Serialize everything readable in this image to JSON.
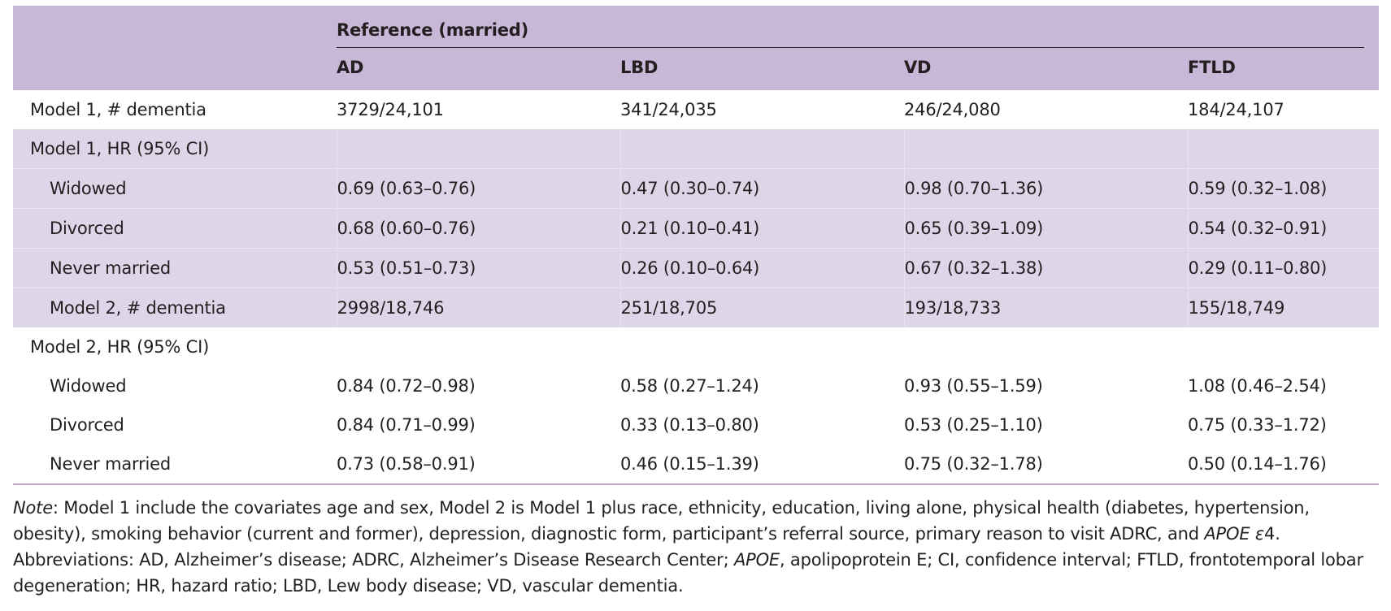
{
  "table": {
    "reference_label": "Reference (married)",
    "columns": [
      "AD",
      "LBD",
      "VD",
      "FTLD"
    ],
    "rows": [
      {
        "label": "Model 1, # dementia",
        "indent": false,
        "shade": false,
        "values": [
          "3729/24,101",
          "341/24,035",
          "246/24,080",
          "184/24,107"
        ]
      },
      {
        "label": "Model 1, HR (95% CI)",
        "indent": false,
        "shade": true,
        "values": [
          "",
          "",
          "",
          ""
        ]
      },
      {
        "label": "Widowed",
        "indent": true,
        "shade": true,
        "values": [
          "0.69 (0.63–0.76)",
          "0.47 (0.30–0.74)",
          "0.98 (0.70–1.36)",
          "0.59 (0.32–1.08)"
        ]
      },
      {
        "label": "Divorced",
        "indent": true,
        "shade": true,
        "values": [
          "0.68 (0.60–0.76)",
          "0.21 (0.10–0.41)",
          "0.65 (0.39–1.09)",
          "0.54 (0.32–0.91)"
        ]
      },
      {
        "label": "Never married",
        "indent": true,
        "shade": true,
        "values": [
          "0.53 (0.51–0.73)",
          "0.26 (0.10–0.64)",
          "0.67 (0.32–1.38)",
          "0.29 (0.11–0.80)"
        ]
      },
      {
        "label": "Model 2, # dementia",
        "indent": true,
        "shade": true,
        "values": [
          "2998/18,746",
          "251/18,705",
          "193/18,733",
          "155/18,749"
        ]
      },
      {
        "label": "Model 2, HR (95% CI)",
        "indent": false,
        "shade": false,
        "values": [
          "",
          "",
          "",
          ""
        ]
      },
      {
        "label": "Widowed",
        "indent": true,
        "shade": false,
        "values": [
          "0.84 (0.72–0.98)",
          "0.58 (0.27–1.24)",
          "0.93 (0.55–1.59)",
          "1.08 (0.46–2.54)"
        ]
      },
      {
        "label": "Divorced",
        "indent": true,
        "shade": false,
        "values": [
          "0.84 (0.71–0.99)",
          "0.33 (0.13–0.80)",
          "0.53 (0.25–1.10)",
          "0.75 (0.33–1.72)"
        ]
      },
      {
        "label": "Never married",
        "indent": true,
        "shade": false,
        "values": [
          "0.73 (0.58–0.91)",
          "0.46 (0.15–1.39)",
          "0.75 (0.32–1.78)",
          "0.50 (0.14–1.76)"
        ]
      }
    ]
  },
  "note": {
    "note_label": "Note",
    "text1": ": Model 1 include the covariates age and sex, Model 2 is Model 1 plus race, ethnicity, education, living alone, physical health (diabetes, hypertension, obesity), smoking behavior (current and former), depression, diagnostic form, participant’s referral source, primary reason to visit ADRC, and ",
    "apoe_e4": "APOE ε",
    "text2": "4.",
    "abbrev1": "Abbreviations: AD, Alzheimer’s disease; ADRC, Alzheimer’s Disease Research Center; ",
    "apoe": "APOE",
    "abbrev2": ", apolipoprotein E; CI, confidence interval; FTLD, frontotemporal lobar degeneration; HR, hazard ratio; LBD, Lew body disease; VD, vascular dementia."
  },
  "colors": {
    "header_bg": "#c9b7d8",
    "shade_bg": "#dfd5e8",
    "text": "#231f20"
  }
}
